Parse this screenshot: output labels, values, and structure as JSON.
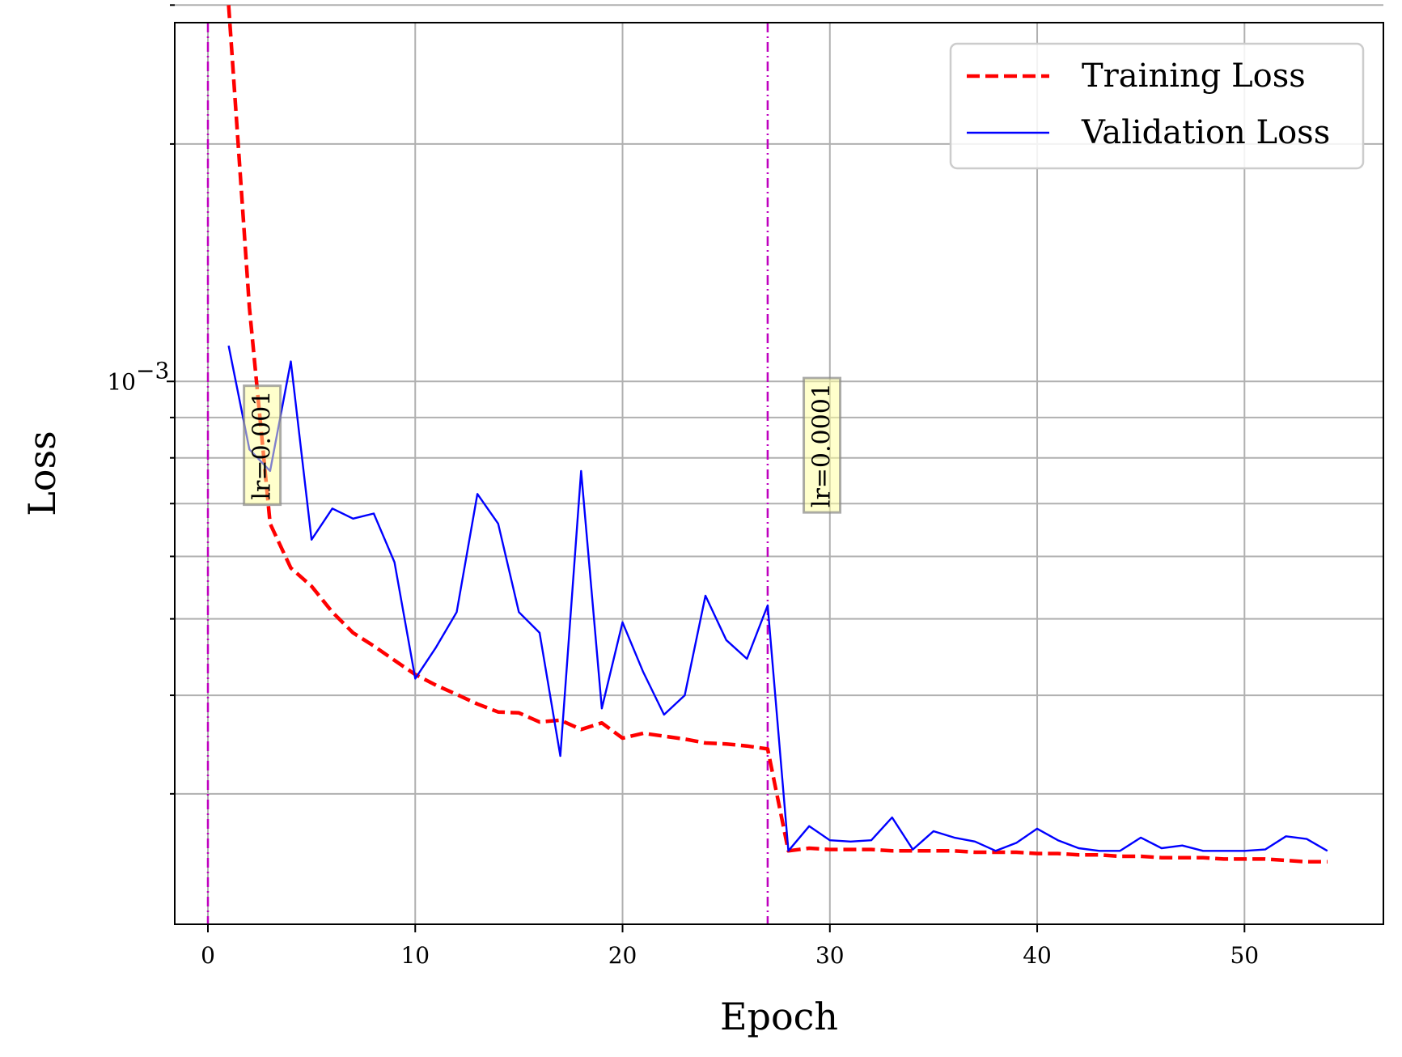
{
  "chart_data": {
    "type": "line",
    "xlabel": "Epoch",
    "ylabel": "Loss",
    "xlim": [
      -1.6,
      56.7
    ],
    "ylim": [
      0.000205,
      0.00285
    ],
    "yscale": "log",
    "grid": true,
    "legend_position": "top-right",
    "xticks": [
      0,
      10,
      20,
      30,
      40,
      50
    ],
    "yticks_major": [
      {
        "value": 0.001,
        "base": "10",
        "exponent": "−3"
      }
    ],
    "yticks_minor": [
      0.0003,
      0.0004,
      0.0005,
      0.0006,
      0.0007,
      0.0008,
      0.0009,
      0.002,
      0.003
    ],
    "series": [
      {
        "name": "Training Loss",
        "color": "#ff0000",
        "style": "dashed",
        "x": [
          1,
          2,
          3,
          4,
          5,
          6,
          7,
          8,
          9,
          10,
          11,
          12,
          13,
          14,
          15,
          16,
          17,
          18,
          19,
          20,
          21,
          22,
          23,
          24,
          25,
          26,
          27,
          28,
          29,
          30,
          31,
          32,
          33,
          34,
          35,
          36,
          37,
          38,
          39,
          40,
          41,
          42,
          43,
          44,
          45,
          46,
          47,
          48,
          49,
          50,
          51,
          52,
          53,
          54
        ],
        "values": [
          0.003,
          0.00124,
          0.00066,
          0.00058,
          0.00055,
          0.00051,
          0.00048,
          0.000462,
          0.000443,
          0.000425,
          0.000412,
          0.000401,
          0.00039,
          0.000381,
          0.00038,
          0.00037,
          0.000372,
          0.000362,
          0.000369,
          0.000353,
          0.000358,
          0.000355,
          0.000352,
          0.000348,
          0.000347,
          0.000345,
          0.000342,
          0.000254,
          0.000256,
          0.000255,
          0.000255,
          0.000255,
          0.000254,
          0.000254,
          0.000254,
          0.000254,
          0.000253,
          0.000253,
          0.000253,
          0.000252,
          0.000252,
          0.000251,
          0.000251,
          0.00025,
          0.00025,
          0.000249,
          0.000249,
          0.000249,
          0.000248,
          0.000248,
          0.000248,
          0.000247,
          0.000246,
          0.000246
        ]
      },
      {
        "name": "Validation Loss",
        "color": "#0000ff",
        "style": "solid",
        "x": [
          1,
          2,
          3,
          4,
          5,
          6,
          7,
          8,
          9,
          10,
          11,
          12,
          13,
          14,
          15,
          16,
          17,
          18,
          19,
          20,
          21,
          22,
          23,
          24,
          25,
          26,
          27,
          28,
          29,
          30,
          31,
          32,
          33,
          34,
          35,
          36,
          37,
          38,
          39,
          40,
          41,
          42,
          43,
          44,
          45,
          46,
          47,
          48,
          49,
          50,
          51,
          52,
          53,
          54
        ],
        "values": [
          0.00111,
          0.00082,
          0.00077,
          0.00106,
          0.00063,
          0.00069,
          0.00067,
          0.00068,
          0.00059,
          0.00042,
          0.00046,
          0.00051,
          0.00072,
          0.00066,
          0.00051,
          0.00048,
          0.000335,
          0.00077,
          0.000385,
          0.000495,
          0.000428,
          0.000378,
          0.0004,
          0.000535,
          0.00047,
          0.000445,
          0.00052,
          0.000254,
          0.000273,
          0.000262,
          0.000261,
          0.000262,
          0.00028,
          0.000255,
          0.000269,
          0.000264,
          0.000261,
          0.000254,
          0.00026,
          0.000271,
          0.000262,
          0.000256,
          0.000254,
          0.000254,
          0.000264,
          0.000256,
          0.000258,
          0.000254,
          0.000254,
          0.000254,
          0.000255,
          0.000265,
          0.000263,
          0.000254
        ]
      }
    ],
    "vlines": [
      {
        "x": 0,
        "color": "#bf00bf",
        "style": "dashdot"
      },
      {
        "x": 27,
        "color": "#bf00bf",
        "style": "dashdot"
      }
    ],
    "annotations": [
      {
        "text": "lr=0.001",
        "x": 2.6,
        "y": 0.00083,
        "rotation": 90,
        "box_color": "#ffff99"
      },
      {
        "text": "lr=0.0001",
        "x": 29.6,
        "y": 0.00083,
        "rotation": 90,
        "box_color": "#ffff99"
      }
    ]
  }
}
